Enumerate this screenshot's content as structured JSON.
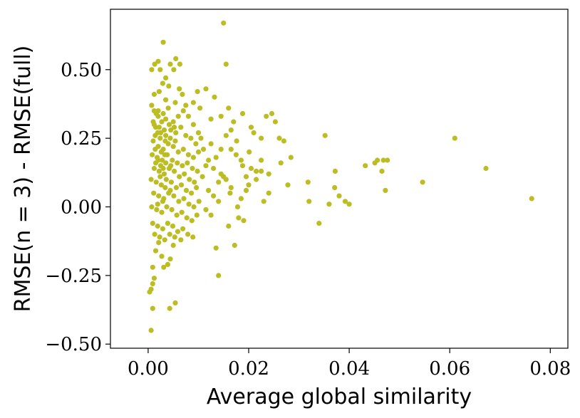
{
  "chart_data": {
    "type": "scatter",
    "title": "",
    "xlabel": "Average global similarity",
    "ylabel": "RMSE(n = 3) - RMSE(full)",
    "xlim": [
      -0.0075,
      0.0835
    ],
    "ylim": [
      -0.515,
      0.72
    ],
    "xticks": [
      0.0,
      0.02,
      0.04,
      0.06,
      0.08
    ],
    "xtick_labels": [
      "0.00",
      "0.02",
      "0.04",
      "0.06",
      "0.08"
    ],
    "yticks": [
      -0.5,
      -0.25,
      0.0,
      0.25,
      0.5
    ],
    "ytick_labels": [
      "−0.50",
      "−0.25",
      "0.00",
      "0.25",
      "0.50"
    ],
    "grid": false,
    "marker_color": "#bcbd22",
    "series": [
      {
        "points": [
          [
            0.0006,
            -0.45
          ],
          [
            0.0009,
            -0.37
          ],
          [
            0.0043,
            -0.37
          ],
          [
            0.0054,
            -0.35
          ],
          [
            0.0003,
            -0.31
          ],
          [
            0.0006,
            -0.3
          ],
          [
            0.0009,
            -0.28
          ],
          [
            0.0012,
            -0.26
          ],
          [
            0.0009,
            -0.22
          ],
          [
            0.0031,
            -0.22
          ],
          [
            0.0039,
            -0.21
          ],
          [
            0.0044,
            -0.19
          ],
          [
            0.0015,
            -0.16
          ],
          [
            0.0027,
            -0.18
          ],
          [
            0.0021,
            -0.13
          ],
          [
            0.005,
            -0.14
          ],
          [
            0.0065,
            -0.12
          ],
          [
            0.0135,
            -0.15
          ],
          [
            0.0172,
            -0.14
          ],
          [
            0.014,
            -0.25
          ],
          [
            0.0007,
            0.37
          ],
          [
            0.0012,
            0.41
          ],
          [
            0.0007,
            0.5
          ],
          [
            0.0013,
            0.52
          ],
          [
            0.002,
            0.53
          ],
          [
            0.0024,
            0.5
          ],
          [
            0.003,
            0.6
          ],
          [
            0.0035,
            0.47
          ],
          [
            0.0044,
            0.52
          ],
          [
            0.0055,
            0.54
          ],
          [
            0.0063,
            0.52
          ],
          [
            0.0051,
            0.5
          ],
          [
            0.0029,
            0.45
          ],
          [
            0.0022,
            0.42
          ],
          [
            0.0041,
            0.44
          ],
          [
            0.0062,
            0.43
          ],
          [
            0.0035,
            0.39
          ],
          [
            0.0054,
            0.38
          ],
          [
            0.0068,
            0.41
          ],
          [
            0.0075,
            0.37
          ],
          [
            0.009,
            0.38
          ],
          [
            0.0098,
            0.42
          ],
          [
            0.0115,
            0.43
          ],
          [
            0.0132,
            0.4
          ],
          [
            0.0103,
            0.36
          ],
          [
            0.0125,
            0.32
          ],
          [
            0.0145,
            0.33
          ],
          [
            0.016,
            0.36
          ],
          [
            0.017,
            0.31
          ],
          [
            0.015,
            0.67
          ],
          [
            0.0155,
            0.52
          ],
          [
            0.0188,
            0.34
          ],
          [
            0.0205,
            0.29
          ],
          [
            0.021,
            0.27
          ],
          [
            0.0225,
            0.25
          ],
          [
            0.0235,
            0.33
          ],
          [
            0.0246,
            0.34
          ],
          [
            0.0253,
            0.31
          ],
          [
            0.0261,
            0.25
          ],
          [
            0.027,
            0.24
          ],
          [
            0.0201,
            0.2
          ],
          [
            0.0176,
            0.24
          ],
          [
            0.0165,
            0.21
          ],
          [
            0.0188,
            0.15
          ],
          [
            0.0225,
            0.17
          ],
          [
            0.024,
            0.12
          ],
          [
            0.0215,
            0.13
          ],
          [
            0.02,
            0.08
          ],
          [
            0.024,
            0.05
          ],
          [
            0.023,
            0.02
          ],
          [
            0.0264,
            0.16
          ],
          [
            0.0284,
            0.18
          ],
          [
            0.0278,
            0.08
          ],
          [
            0.0318,
            0.09
          ],
          [
            0.032,
            0.02
          ],
          [
            0.034,
            -0.06
          ],
          [
            0.0352,
            0.26
          ],
          [
            0.036,
            0.01
          ],
          [
            0.0372,
            0.13
          ],
          [
            0.0371,
            0.07
          ],
          [
            0.038,
            0.04
          ],
          [
            0.0392,
            0.02
          ],
          [
            0.04,
            0.01
          ],
          [
            0.0432,
            0.15
          ],
          [
            0.0451,
            0.16
          ],
          [
            0.0456,
            0.17
          ],
          [
            0.0468,
            0.17
          ],
          [
            0.0465,
            0.13
          ],
          [
            0.0476,
            0.17
          ],
          [
            0.0472,
            0.06
          ],
          [
            0.0546,
            0.09
          ],
          [
            0.061,
            0.25
          ],
          [
            0.0672,
            0.14
          ],
          [
            0.0763,
            0.03
          ],
          [
            0.018,
            -0.04
          ],
          [
            0.019,
            -0.05
          ],
          [
            0.016,
            -0.07
          ],
          [
            0.0178,
            0.0
          ],
          [
            0.0163,
            0.05
          ],
          [
            0.014,
            0.09
          ],
          [
            0.015,
            0.11
          ],
          [
            0.013,
            0.14
          ],
          [
            0.012,
            0.17
          ],
          [
            0.011,
            0.21
          ],
          [
            0.0125,
            0.23
          ],
          [
            0.01,
            0.27
          ],
          [
            0.009,
            0.3
          ],
          [
            0.008,
            0.33
          ],
          [
            0.007,
            0.35
          ],
          [
            0.006,
            0.33
          ],
          [
            0.005,
            0.31
          ],
          [
            0.004,
            0.36
          ],
          [
            0.003,
            0.34
          ],
          [
            0.002,
            0.33
          ],
          [
            0.001,
            0.31
          ],
          [
            0.0015,
            0.29
          ],
          [
            0.0025,
            0.27
          ],
          [
            0.0035,
            0.26
          ],
          [
            0.0045,
            0.28
          ],
          [
            0.0055,
            0.27
          ],
          [
            0.0065,
            0.29
          ],
          [
            0.0075,
            0.26
          ],
          [
            0.0085,
            0.25
          ],
          [
            0.0095,
            0.23
          ],
          [
            0.0105,
            0.25
          ],
          [
            0.001,
            0.24
          ],
          [
            0.002,
            0.22
          ],
          [
            0.003,
            0.21
          ],
          [
            0.004,
            0.23
          ],
          [
            0.005,
            0.22
          ],
          [
            0.006,
            0.2
          ],
          [
            0.007,
            0.21
          ],
          [
            0.008,
            0.19
          ],
          [
            0.009,
            0.18
          ],
          [
            0.01,
            0.2
          ],
          [
            0.0008,
            0.19
          ],
          [
            0.0018,
            0.18
          ],
          [
            0.0028,
            0.17
          ],
          [
            0.0038,
            0.19
          ],
          [
            0.0048,
            0.17
          ],
          [
            0.0058,
            0.16
          ],
          [
            0.0068,
            0.15
          ],
          [
            0.0078,
            0.16
          ],
          [
            0.0088,
            0.14
          ],
          [
            0.0098,
            0.13
          ],
          [
            0.0012,
            0.14
          ],
          [
            0.0022,
            0.13
          ],
          [
            0.0032,
            0.12
          ],
          [
            0.0042,
            0.14
          ],
          [
            0.0052,
            0.13
          ],
          [
            0.0062,
            0.11
          ],
          [
            0.0072,
            0.12
          ],
          [
            0.0082,
            0.1
          ],
          [
            0.0092,
            0.09
          ],
          [
            0.0108,
            0.11
          ],
          [
            0.0006,
            0.1
          ],
          [
            0.0016,
            0.09
          ],
          [
            0.0026,
            0.08
          ],
          [
            0.0036,
            0.1
          ],
          [
            0.0046,
            0.09
          ],
          [
            0.0056,
            0.07
          ],
          [
            0.0066,
            0.08
          ],
          [
            0.0076,
            0.06
          ],
          [
            0.0086,
            0.05
          ],
          [
            0.0096,
            0.07
          ],
          [
            0.0011,
            0.05
          ],
          [
            0.0021,
            0.04
          ],
          [
            0.0031,
            0.03
          ],
          [
            0.0041,
            0.05
          ],
          [
            0.0051,
            0.04
          ],
          [
            0.0061,
            0.02
          ],
          [
            0.0071,
            0.03
          ],
          [
            0.0081,
            0.01
          ],
          [
            0.0091,
            0.0
          ],
          [
            0.0101,
            0.02
          ],
          [
            0.0007,
            0.0
          ],
          [
            0.0017,
            -0.01
          ],
          [
            0.0027,
            -0.02
          ],
          [
            0.0037,
            0.0
          ],
          [
            0.0047,
            -0.01
          ],
          [
            0.0057,
            -0.03
          ],
          [
            0.0067,
            -0.02
          ],
          [
            0.0077,
            -0.04
          ],
          [
            0.0087,
            -0.05
          ],
          [
            0.0097,
            -0.03
          ],
          [
            0.0009,
            -0.06
          ],
          [
            0.0019,
            -0.07
          ],
          [
            0.0029,
            -0.08
          ],
          [
            0.0039,
            -0.06
          ],
          [
            0.0049,
            -0.07
          ],
          [
            0.0059,
            -0.09
          ],
          [
            0.0069,
            -0.08
          ],
          [
            0.0079,
            -0.1
          ],
          [
            0.0089,
            -0.11
          ],
          [
            0.0013,
            -0.1
          ],
          [
            0.0023,
            -0.11
          ],
          [
            0.0033,
            -0.12
          ],
          [
            0.0043,
            -0.1
          ],
          [
            0.0053,
            -0.11
          ],
          [
            0.0012,
            0.3
          ],
          [
            0.0022,
            0.29
          ],
          [
            0.0032,
            0.28
          ],
          [
            0.0042,
            0.3
          ],
          [
            0.0052,
            0.29
          ],
          [
            0.0014,
            0.26
          ],
          [
            0.0024,
            0.25
          ],
          [
            0.0034,
            0.24
          ],
          [
            0.0044,
            0.25
          ],
          [
            0.0054,
            0.24
          ],
          [
            0.0015,
            0.16
          ],
          [
            0.0025,
            0.15
          ],
          [
            0.0035,
            0.16
          ],
          [
            0.0045,
            0.15
          ],
          [
            0.0024,
            0.11
          ],
          [
            0.0034,
            0.07
          ],
          [
            0.0044,
            0.06
          ],
          [
            0.0029,
            0.02
          ],
          [
            0.0019,
            0.01
          ],
          [
            0.0014,
            0.21
          ],
          [
            0.0026,
            0.2
          ],
          [
            0.0033,
            0.19
          ],
          [
            0.0019,
            0.27
          ],
          [
            0.0027,
            0.31
          ],
          [
            0.0035,
            0.32
          ],
          [
            0.002,
            0.35
          ],
          [
            0.0016,
            0.34
          ],
          [
            0.0012,
            0.35
          ],
          [
            0.003,
            0.14
          ],
          [
            0.002,
            0.17
          ],
          [
            0.012,
            0.06
          ],
          [
            0.013,
            0.04
          ],
          [
            0.014,
            0.02
          ],
          [
            0.0115,
            -0.01
          ],
          [
            0.0125,
            -0.03
          ],
          [
            0.0145,
            0.12
          ],
          [
            0.0155,
            0.1
          ],
          [
            0.0165,
            0.07
          ],
          [
            0.0115,
            0.15
          ],
          [
            0.0135,
            0.18
          ],
          [
            0.0145,
            0.21
          ],
          [
            0.0155,
            0.26
          ],
          [
            0.0165,
            0.28
          ],
          [
            0.0175,
            0.19
          ],
          [
            0.0185,
            0.17
          ],
          [
            0.0195,
            0.11
          ],
          [
            0.0205,
            0.14
          ],
          [
            0.0215,
            0.1
          ],
          [
            0.0225,
            0.13
          ],
          [
            0.0195,
            0.06
          ],
          [
            0.0185,
            0.03
          ]
        ]
      }
    ]
  }
}
